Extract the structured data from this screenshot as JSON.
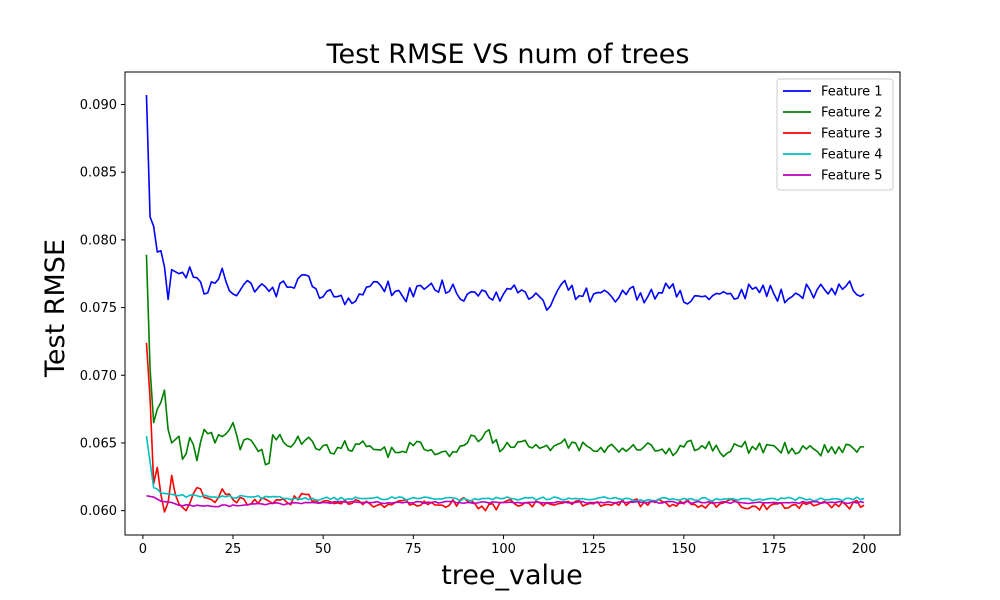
{
  "chart_data": {
    "type": "line",
    "title": "Test RMSE VS num of trees",
    "xlabel": "tree_value",
    "ylabel": "Test RMSE",
    "xlim": [
      -4.95,
      209.95
    ],
    "ylim": [
      0.0582,
      0.0924
    ],
    "xticks": [
      0,
      25,
      50,
      75,
      100,
      125,
      150,
      175,
      200
    ],
    "yticks": [
      0.06,
      0.065,
      0.07,
      0.075,
      0.08,
      0.085,
      0.09
    ],
    "ytick_labels": [
      "0.060",
      "0.065",
      "0.070",
      "0.075",
      "0.080",
      "0.085",
      "0.090"
    ],
    "grid": false,
    "legend_position": "top-right",
    "x_start": 1,
    "x_end": 200,
    "series": [
      {
        "name": "Feature 1",
        "color": "#0000ff",
        "keypoints": [
          [
            1,
            0.0907
          ],
          [
            2,
            0.0817
          ],
          [
            3,
            0.081
          ],
          [
            4,
            0.0791
          ],
          [
            5,
            0.0792
          ],
          [
            6,
            0.078
          ],
          [
            7,
            0.0756
          ],
          [
            8,
            0.0778
          ],
          [
            10,
            0.0775
          ],
          [
            12,
            0.0772
          ],
          [
            13,
            0.078
          ],
          [
            15,
            0.0772
          ],
          [
            17,
            0.076
          ],
          [
            20,
            0.0768
          ],
          [
            22,
            0.0779
          ],
          [
            25,
            0.076
          ],
          [
            30,
            0.0768
          ],
          [
            35,
            0.0762
          ],
          [
            40,
            0.0765
          ],
          [
            44,
            0.0774
          ],
          [
            50,
            0.0758
          ],
          [
            55,
            0.0759
          ],
          [
            58,
            0.0753
          ],
          [
            60,
            0.076
          ],
          [
            65,
            0.0769
          ],
          [
            70,
            0.0762
          ],
          [
            75,
            0.0758
          ],
          [
            80,
            0.0768
          ],
          [
            85,
            0.0762
          ],
          [
            90,
            0.076
          ],
          [
            95,
            0.0762
          ],
          [
            100,
            0.076
          ],
          [
            105,
            0.0763
          ],
          [
            110,
            0.0758
          ],
          [
            113,
            0.0751
          ],
          [
            117,
            0.077
          ],
          [
            120,
            0.0756
          ],
          [
            125,
            0.076
          ],
          [
            130,
            0.0758
          ],
          [
            135,
            0.0764
          ],
          [
            140,
            0.0758
          ],
          [
            145,
            0.0768
          ],
          [
            150,
            0.0754
          ],
          [
            155,
            0.0758
          ],
          [
            160,
            0.076
          ],
          [
            165,
            0.0757
          ],
          [
            170,
            0.0765
          ],
          [
            175,
            0.076
          ],
          [
            180,
            0.0758
          ],
          [
            185,
            0.0763
          ],
          [
            190,
            0.076
          ],
          [
            195,
            0.0766
          ],
          [
            200,
            0.076
          ]
        ],
        "noise": 0.0006
      },
      {
        "name": "Feature 2",
        "color": "#008000",
        "keypoints": [
          [
            1,
            0.0789
          ],
          [
            2,
            0.0705
          ],
          [
            3,
            0.0665
          ],
          [
            4,
            0.0675
          ],
          [
            5,
            0.068
          ],
          [
            6,
            0.0689
          ],
          [
            7,
            0.066
          ],
          [
            8,
            0.065
          ],
          [
            10,
            0.0655
          ],
          [
            11,
            0.0638
          ],
          [
            13,
            0.0654
          ],
          [
            15,
            0.0637
          ],
          [
            17,
            0.066
          ],
          [
            20,
            0.065
          ],
          [
            25,
            0.0665
          ],
          [
            27,
            0.0645
          ],
          [
            30,
            0.0652
          ],
          [
            35,
            0.0635
          ],
          [
            36,
            0.0656
          ],
          [
            40,
            0.0648
          ],
          [
            45,
            0.0652
          ],
          [
            50,
            0.0648
          ],
          [
            55,
            0.0646
          ],
          [
            60,
            0.0649
          ],
          [
            65,
            0.0645
          ],
          [
            70,
            0.0643
          ],
          [
            75,
            0.0648
          ],
          [
            80,
            0.0645
          ],
          [
            85,
            0.064
          ],
          [
            90,
            0.065
          ],
          [
            95,
            0.0658
          ],
          [
            100,
            0.0646
          ],
          [
            105,
            0.0651
          ],
          [
            110,
            0.0646
          ],
          [
            115,
            0.0649
          ],
          [
            120,
            0.065
          ],
          [
            125,
            0.0644
          ],
          [
            130,
            0.0649
          ],
          [
            135,
            0.0646
          ],
          [
            140,
            0.065
          ],
          [
            145,
            0.0642
          ],
          [
            150,
            0.0647
          ],
          [
            155,
            0.0648
          ],
          [
            160,
            0.0643
          ],
          [
            165,
            0.0648
          ],
          [
            170,
            0.0645
          ],
          [
            175,
            0.0648
          ],
          [
            180,
            0.0646
          ],
          [
            185,
            0.0648
          ],
          [
            190,
            0.0643
          ],
          [
            195,
            0.0649
          ],
          [
            200,
            0.0647
          ]
        ],
        "noise": 0.0005
      },
      {
        "name": "Feature 3",
        "color": "#ff0000",
        "keypoints": [
          [
            1,
            0.0724
          ],
          [
            2,
            0.0683
          ],
          [
            3,
            0.062
          ],
          [
            4,
            0.0632
          ],
          [
            5,
            0.0612
          ],
          [
            6,
            0.0599
          ],
          [
            7,
            0.0606
          ],
          [
            8,
            0.0626
          ],
          [
            9,
            0.0612
          ],
          [
            10,
            0.0605
          ],
          [
            12,
            0.06
          ],
          [
            15,
            0.0617
          ],
          [
            20,
            0.0606
          ],
          [
            22,
            0.0616
          ],
          [
            25,
            0.0608
          ],
          [
            30,
            0.0605
          ],
          [
            35,
            0.0607
          ],
          [
            40,
            0.0606
          ],
          [
            45,
            0.0612
          ],
          [
            50,
            0.0607
          ],
          [
            55,
            0.0605
          ],
          [
            60,
            0.0607
          ],
          [
            65,
            0.0604
          ],
          [
            70,
            0.0606
          ],
          [
            75,
            0.0605
          ],
          [
            80,
            0.0606
          ],
          [
            85,
            0.0604
          ],
          [
            90,
            0.0607
          ],
          [
            95,
            0.06
          ],
          [
            100,
            0.0606
          ],
          [
            105,
            0.0604
          ],
          [
            110,
            0.0606
          ],
          [
            115,
            0.0605
          ],
          [
            120,
            0.0607
          ],
          [
            125,
            0.0605
          ],
          [
            130,
            0.0604
          ],
          [
            135,
            0.0606
          ],
          [
            140,
            0.0604
          ],
          [
            145,
            0.0606
          ],
          [
            150,
            0.0605
          ],
          [
            155,
            0.0604
          ],
          [
            160,
            0.0605
          ],
          [
            165,
            0.0606
          ],
          [
            170,
            0.0603
          ],
          [
            175,
            0.0605
          ],
          [
            180,
            0.0604
          ],
          [
            185,
            0.0606
          ],
          [
            190,
            0.0605
          ],
          [
            195,
            0.0604
          ],
          [
            200,
            0.0604
          ]
        ],
        "noise": 0.00035
      },
      {
        "name": "Feature 4",
        "color": "#00bfbf",
        "keypoints": [
          [
            1,
            0.0655
          ],
          [
            2,
            0.0636
          ],
          [
            3,
            0.0617
          ],
          [
            4,
            0.0616
          ],
          [
            5,
            0.0613
          ],
          [
            8,
            0.0612
          ],
          [
            10,
            0.0611
          ],
          [
            15,
            0.0611
          ],
          [
            20,
            0.061
          ],
          [
            30,
            0.061
          ],
          [
            40,
            0.0609
          ],
          [
            50,
            0.0609
          ],
          [
            60,
            0.0609
          ],
          [
            70,
            0.0609
          ],
          [
            80,
            0.0609
          ],
          [
            90,
            0.0608
          ],
          [
            100,
            0.0609
          ],
          [
            110,
            0.0609
          ],
          [
            120,
            0.0609
          ],
          [
            130,
            0.0609
          ],
          [
            140,
            0.0608
          ],
          [
            150,
            0.0609
          ],
          [
            160,
            0.0608
          ],
          [
            170,
            0.0608
          ],
          [
            180,
            0.0609
          ],
          [
            190,
            0.0608
          ],
          [
            200,
            0.0609
          ]
        ],
        "noise": 0.00012
      },
      {
        "name": "Feature 5",
        "color": "#bf00bf",
        "keypoints": [
          [
            1,
            0.0611
          ],
          [
            3,
            0.061
          ],
          [
            5,
            0.0607
          ],
          [
            8,
            0.0606
          ],
          [
            10,
            0.0604
          ],
          [
            15,
            0.0604
          ],
          [
            20,
            0.0603
          ],
          [
            30,
            0.0605
          ],
          [
            40,
            0.0605
          ],
          [
            50,
            0.0606
          ],
          [
            60,
            0.0606
          ],
          [
            70,
            0.0606
          ],
          [
            80,
            0.0606
          ],
          [
            90,
            0.0606
          ],
          [
            100,
            0.0606
          ],
          [
            110,
            0.0606
          ],
          [
            120,
            0.0606
          ],
          [
            130,
            0.0606
          ],
          [
            140,
            0.0606
          ],
          [
            150,
            0.0606
          ],
          [
            160,
            0.0606
          ],
          [
            170,
            0.0606
          ],
          [
            180,
            0.0606
          ],
          [
            190,
            0.0606
          ],
          [
            200,
            0.0606
          ]
        ],
        "noise": 8e-05
      }
    ]
  }
}
